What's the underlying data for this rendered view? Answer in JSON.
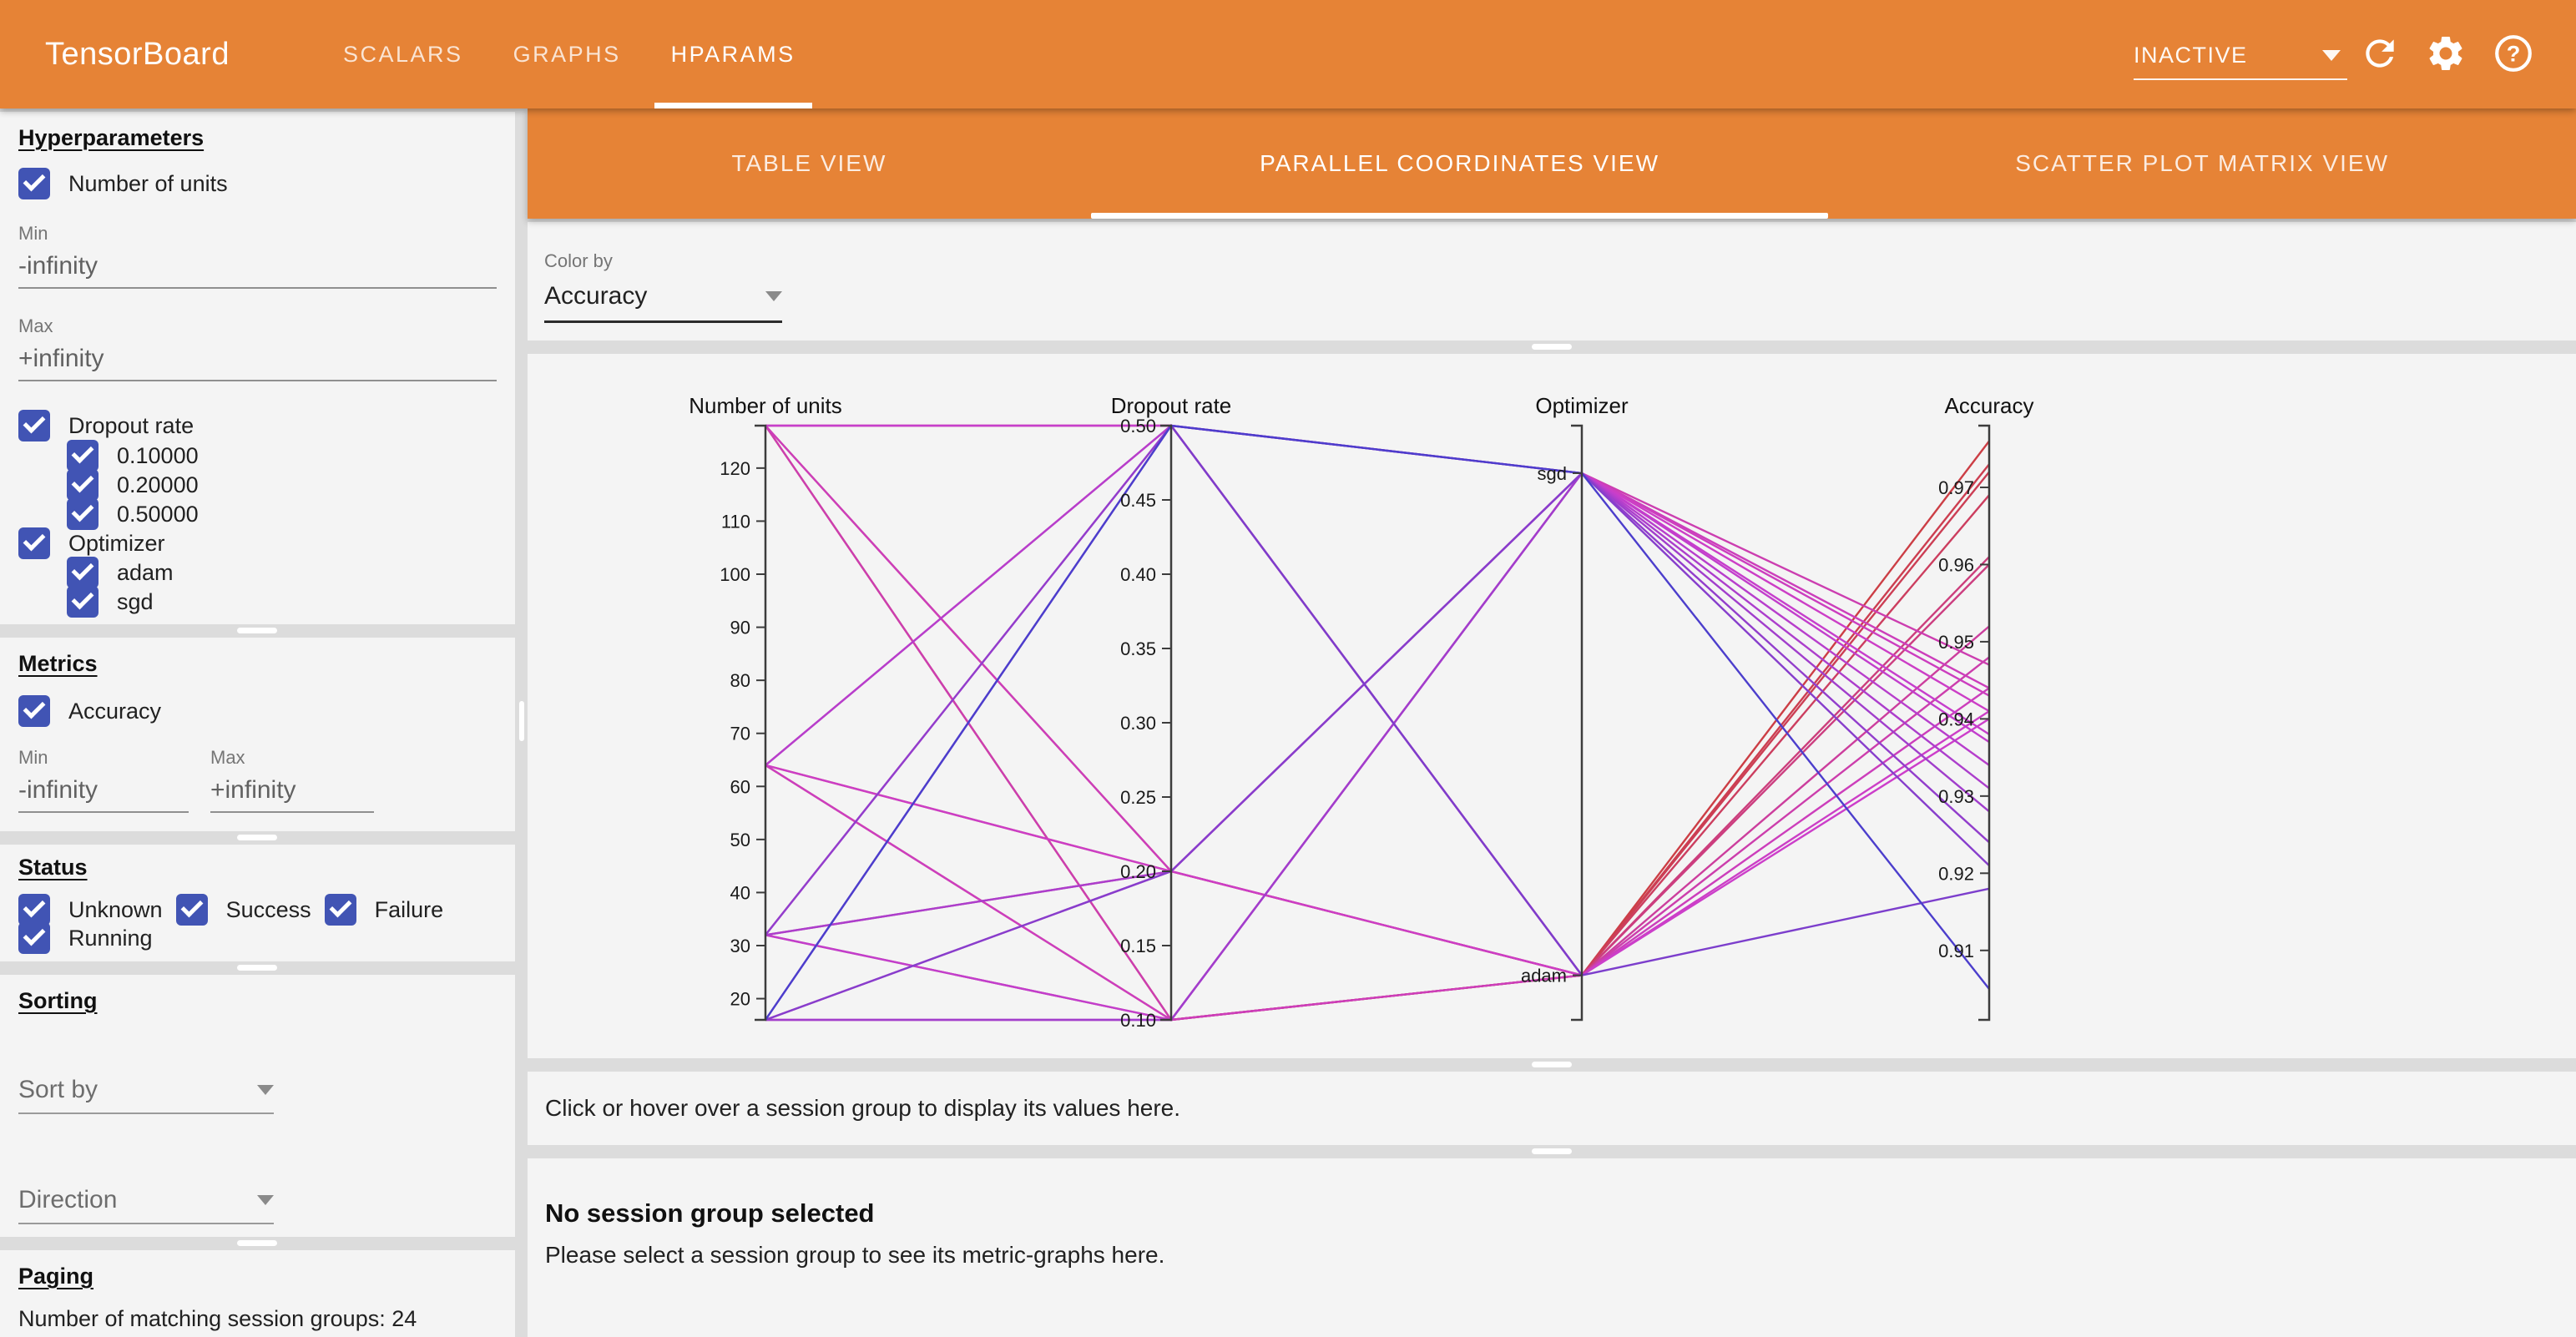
{
  "topbar": {
    "logo": "TensorBoard",
    "tabs": [
      {
        "label": "SCALARS"
      },
      {
        "label": "GRAPHS"
      },
      {
        "label": "HPARAMS"
      }
    ],
    "active_tab": "HPARAMS",
    "status_dropdown": "INACTIVE"
  },
  "sidebar": {
    "hyperparameters": {
      "title": "Hyperparameters",
      "number_of_units": {
        "label": "Number of units",
        "min_label": "Min",
        "min_value": "-infinity",
        "max_label": "Max",
        "max_value": "+infinity"
      },
      "dropout_rate": {
        "label": "Dropout rate",
        "values": [
          "0.10000",
          "0.20000",
          "0.50000"
        ]
      },
      "optimizer": {
        "label": "Optimizer",
        "values": [
          "adam",
          "sgd"
        ]
      }
    },
    "metrics": {
      "title": "Metrics",
      "accuracy_label": "Accuracy",
      "min_label": "Min",
      "min_value": "-infinity",
      "max_label": "Max",
      "max_value": "+infinity"
    },
    "status": {
      "title": "Status",
      "options": [
        "Unknown",
        "Success",
        "Failure",
        "Running"
      ]
    },
    "sorting": {
      "title": "Sorting",
      "sort_by_label": "Sort by",
      "direction_label": "Direction"
    },
    "paging": {
      "title": "Paging",
      "summary": "Number of matching session groups: 24"
    }
  },
  "main": {
    "view_tabs": [
      {
        "label": "TABLE VIEW"
      },
      {
        "label": "PARALLEL COORDINATES VIEW"
      },
      {
        "label": "SCATTER PLOT MATRIX VIEW"
      }
    ],
    "active_view": "PARALLEL COORDINATES VIEW",
    "color_by": {
      "label": "Color by",
      "value": "Accuracy"
    },
    "hover_message": "Click or hover over a session group to display its values here.",
    "no_selection": {
      "title": "No session group selected",
      "message": "Please select a session group to see its metric-graphs here."
    }
  },
  "colors": {
    "toolbar_orange": "#e68336",
    "checkbox_blue": "#4154b4",
    "panel_bg": "#f4f4f4",
    "divider_gray": "#dcdcdc",
    "line_low_accuracy": "#3a36c9",
    "line_high_accuracy": "#d34f52"
  },
  "chart_data": {
    "type": "parallel_coordinates",
    "color_by": "Accuracy",
    "legend_position": "none",
    "grid": false,
    "axes": [
      {
        "field": "units",
        "name": "Number of units",
        "type": "linear",
        "min": 16,
        "max": 128,
        "ticks": [
          20,
          30,
          40,
          50,
          60,
          70,
          80,
          90,
          100,
          110,
          120
        ],
        "tick_labels": [
          "20",
          "30",
          "40",
          "50",
          "60",
          "70",
          "80",
          "90",
          "100",
          "110",
          "120"
        ]
      },
      {
        "field": "dropout",
        "name": "Dropout rate",
        "type": "linear",
        "min": 0.1,
        "max": 0.5,
        "ticks": [
          0.1,
          0.15,
          0.2,
          0.25,
          0.3,
          0.35,
          0.4,
          0.45,
          0.5
        ],
        "tick_labels": [
          "0.10",
          "0.15",
          "0.20",
          "0.25",
          "0.30",
          "0.35",
          "0.40",
          "0.45",
          "0.50"
        ]
      },
      {
        "field": "optimizer",
        "name": "Optimizer",
        "type": "categorical",
        "categories": [
          {
            "label": "sgd",
            "pos": 0.08
          },
          {
            "label": "adam",
            "pos": 0.925
          }
        ]
      },
      {
        "field": "accuracy",
        "name": "Accuracy",
        "type": "linear",
        "min": 0.901,
        "max": 0.978,
        "ticks": [
          0.91,
          0.92,
          0.93,
          0.94,
          0.95,
          0.96,
          0.97
        ],
        "tick_labels": [
          "0.91",
          "0.92",
          "0.93",
          "0.94",
          "0.95",
          "0.96",
          "0.97"
        ]
      }
    ],
    "color_scale": {
      "min_value": 0.901,
      "max_value": 0.978,
      "low_hue": 240,
      "high_hue": 360,
      "saturation": 58,
      "lightness": 52
    },
    "sessions": [
      {
        "units": 128,
        "dropout": 0.1,
        "optimizer": "adam",
        "accuracy": 0.976
      },
      {
        "units": 128,
        "dropout": 0.2,
        "optimizer": "adam",
        "accuracy": 0.973
      },
      {
        "units": 64,
        "dropout": 0.1,
        "optimizer": "adam",
        "accuracy": 0.972
      },
      {
        "units": 64,
        "dropout": 0.2,
        "optimizer": "adam",
        "accuracy": 0.969
      },
      {
        "units": 128,
        "dropout": 0.5,
        "optimizer": "adam",
        "accuracy": 0.961
      },
      {
        "units": 32,
        "dropout": 0.1,
        "optimizer": "adam",
        "accuracy": 0.96
      },
      {
        "units": 32,
        "dropout": 0.2,
        "optimizer": "adam",
        "accuracy": 0.952
      },
      {
        "units": 64,
        "dropout": 0.5,
        "optimizer": "adam",
        "accuracy": 0.948
      },
      {
        "units": 16,
        "dropout": 0.1,
        "optimizer": "adam",
        "accuracy": 0.944
      },
      {
        "units": 16,
        "dropout": 0.2,
        "optimizer": "adam",
        "accuracy": 0.941
      },
      {
        "units": 32,
        "dropout": 0.5,
        "optimizer": "adam",
        "accuracy": 0.94
      },
      {
        "units": 16,
        "dropout": 0.5,
        "optimizer": "adam",
        "accuracy": 0.918
      },
      {
        "units": 128,
        "dropout": 0.1,
        "optimizer": "sgd",
        "accuracy": 0.947
      },
      {
        "units": 128,
        "dropout": 0.2,
        "optimizer": "sgd",
        "accuracy": 0.944
      },
      {
        "units": 64,
        "dropout": 0.1,
        "optimizer": "sgd",
        "accuracy": 0.943
      },
      {
        "units": 64,
        "dropout": 0.2,
        "optimizer": "sgd",
        "accuracy": 0.941
      },
      {
        "units": 128,
        "dropout": 0.5,
        "optimizer": "sgd",
        "accuracy": 0.938
      },
      {
        "units": 32,
        "dropout": 0.1,
        "optimizer": "sgd",
        "accuracy": 0.937
      },
      {
        "units": 64,
        "dropout": 0.5,
        "optimizer": "sgd",
        "accuracy": 0.934
      },
      {
        "units": 32,
        "dropout": 0.2,
        "optimizer": "sgd",
        "accuracy": 0.931
      },
      {
        "units": 16,
        "dropout": 0.1,
        "optimizer": "sgd",
        "accuracy": 0.928
      },
      {
        "units": 32,
        "dropout": 0.5,
        "optimizer": "sgd",
        "accuracy": 0.924
      },
      {
        "units": 16,
        "dropout": 0.2,
        "optimizer": "sgd",
        "accuracy": 0.921
      },
      {
        "units": 16,
        "dropout": 0.5,
        "optimizer": "sgd",
        "accuracy": 0.905
      }
    ]
  }
}
